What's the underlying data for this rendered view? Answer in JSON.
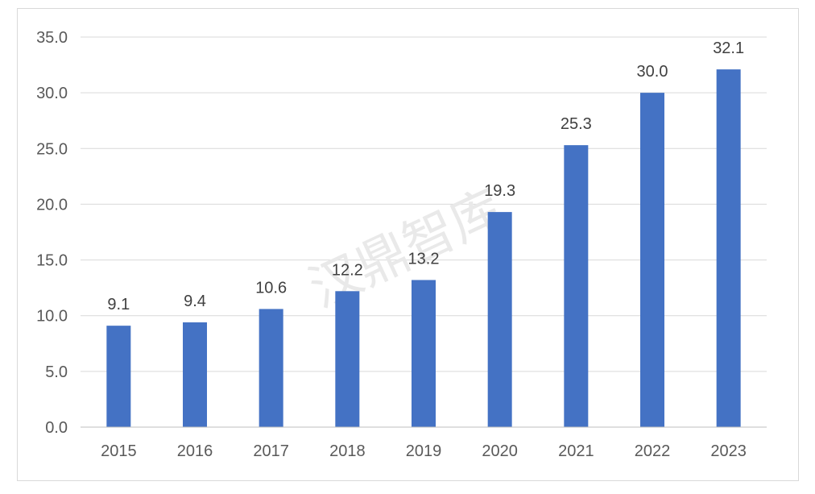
{
  "watermark": "汉鼎智库",
  "colors": {
    "bar": "#4472C4",
    "grid": "#d9d9d9",
    "axis": "#bfbfbf"
  },
  "chart_data": {
    "type": "bar",
    "categories": [
      "2015",
      "2016",
      "2017",
      "2018",
      "2019",
      "2020",
      "2021",
      "2022",
      "2023"
    ],
    "values": [
      9.1,
      9.4,
      10.6,
      12.2,
      13.2,
      19.3,
      25.3,
      30.0,
      32.1
    ],
    "data_labels": [
      "9.1",
      "9.4",
      "10.6",
      "12.2",
      "13.2",
      "19.3",
      "25.3",
      "30.0",
      "32.1"
    ],
    "y_ticks": [
      "0.0",
      "5.0",
      "10.0",
      "15.0",
      "20.0",
      "25.0",
      "30.0",
      "35.0"
    ],
    "ylim": [
      0,
      35
    ],
    "grid": true,
    "legend": "none",
    "title": "",
    "xlabel": "",
    "ylabel": ""
  }
}
